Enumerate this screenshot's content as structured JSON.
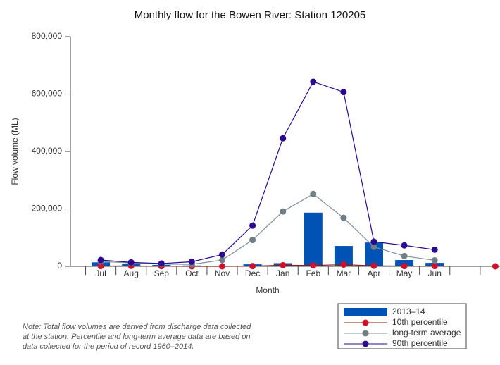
{
  "chart_data": {
    "type": "combo",
    "title": "Monthly flow for the Bowen River: Station 120205",
    "x_label": "Month",
    "y_label": "Flow volume (ML)",
    "categories": [
      "Jul",
      "Aug",
      "Sep",
      "Oct",
      "Nov",
      "Dec",
      "Jan",
      "Feb",
      "Mar",
      "Apr",
      "May",
      "Jun",
      null,
      null
    ],
    "ylim": [
      0,
      800000
    ],
    "yticks": [
      0,
      {
        "value": 200000,
        "label": "200,000"
      },
      {
        "value": 400000,
        "label": "400,000"
      },
      {
        "value": 600000,
        "label": "600,000"
      },
      {
        "value": 800000,
        "label": "800,000"
      }
    ],
    "series": [
      {
        "name": "2013–14",
        "kind": "bar",
        "color": "#0052b4",
        "values": [
          14000,
          8000,
          5000,
          3000,
          2000,
          7000,
          11000,
          187000,
          71000,
          83000,
          22000,
          12000,
          null,
          null
        ]
      },
      {
        "name": "10th percentile",
        "kind": "line",
        "color": "#d0112b",
        "line_color": "#8b1a1a",
        "values": [
          1000,
          1500,
          500,
          0,
          0,
          1000,
          4000,
          3000,
          6000,
          2000,
          1000,
          1000,
          null,
          0
        ]
      },
      {
        "name": "long-term average",
        "kind": "line",
        "color": "#6e7f86",
        "line_color": "#7f9096",
        "values": [
          17000,
          12000,
          8000,
          7000,
          22000,
          92000,
          191000,
          252000,
          169000,
          68000,
          36000,
          21000,
          null,
          null
        ]
      },
      {
        "name": "90th percentile",
        "kind": "line",
        "color": "#2a0a8f",
        "line_color": "#2a0a8f",
        "values": [
          22000,
          14000,
          10000,
          16000,
          41000,
          142000,
          446000,
          643000,
          607000,
          86000,
          73000,
          58000,
          null,
          null
        ]
      }
    ],
    "note": [
      "Note: Total flow volumes are derived from discharge data collected",
      "at the station. Percentile and long-term average data are based on",
      "data collected for the period of record 1960–2014."
    ]
  }
}
